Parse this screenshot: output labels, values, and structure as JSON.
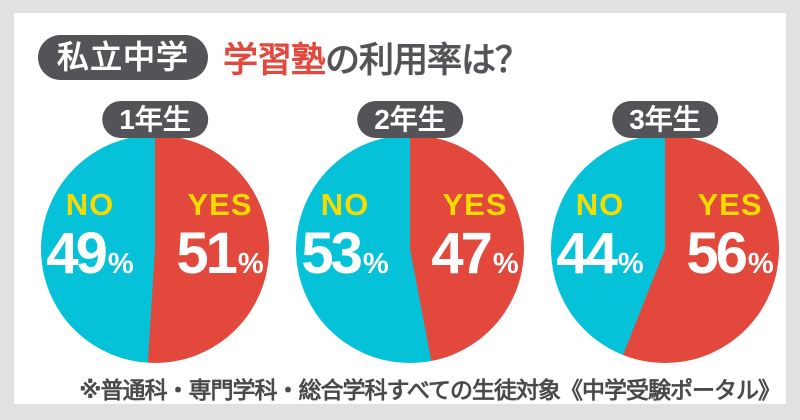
{
  "title": {
    "badge": "私立中学",
    "highlight": "学習塾",
    "rest": "の利用率は？"
  },
  "footnote": "※普通科・専門学科・総合学科すべての生徒対象《中学受験ポータル》",
  "colors": {
    "yes_red": "#e2483c",
    "no_cyan": "#05c2d9",
    "label_yellow": "#f6db00",
    "dark_gray": "#545458",
    "frame_gray": "#e1e1e1",
    "value_white": "#ffffff",
    "footnote_gray": "#4a4a4a"
  },
  "unit": "%",
  "chart_data": [
    {
      "type": "pie",
      "title": "1年生",
      "start_angle": "top",
      "direction": "clockwise",
      "slices": [
        {
          "label": "YES",
          "value": 51,
          "color": "#e2483c"
        },
        {
          "label": "NO",
          "value": 49,
          "color": "#05c2d9"
        }
      ]
    },
    {
      "type": "pie",
      "title": "2年生",
      "start_angle": "top",
      "direction": "clockwise",
      "slices": [
        {
          "label": "YES",
          "value": 47,
          "color": "#e2483c"
        },
        {
          "label": "NO",
          "value": 53,
          "color": "#05c2d9"
        }
      ]
    },
    {
      "type": "pie",
      "title": "3年生",
      "start_angle": "top",
      "direction": "clockwise",
      "slices": [
        {
          "label": "YES",
          "value": 56,
          "color": "#e2483c"
        },
        {
          "label": "NO",
          "value": 44,
          "color": "#05c2d9"
        }
      ]
    }
  ]
}
